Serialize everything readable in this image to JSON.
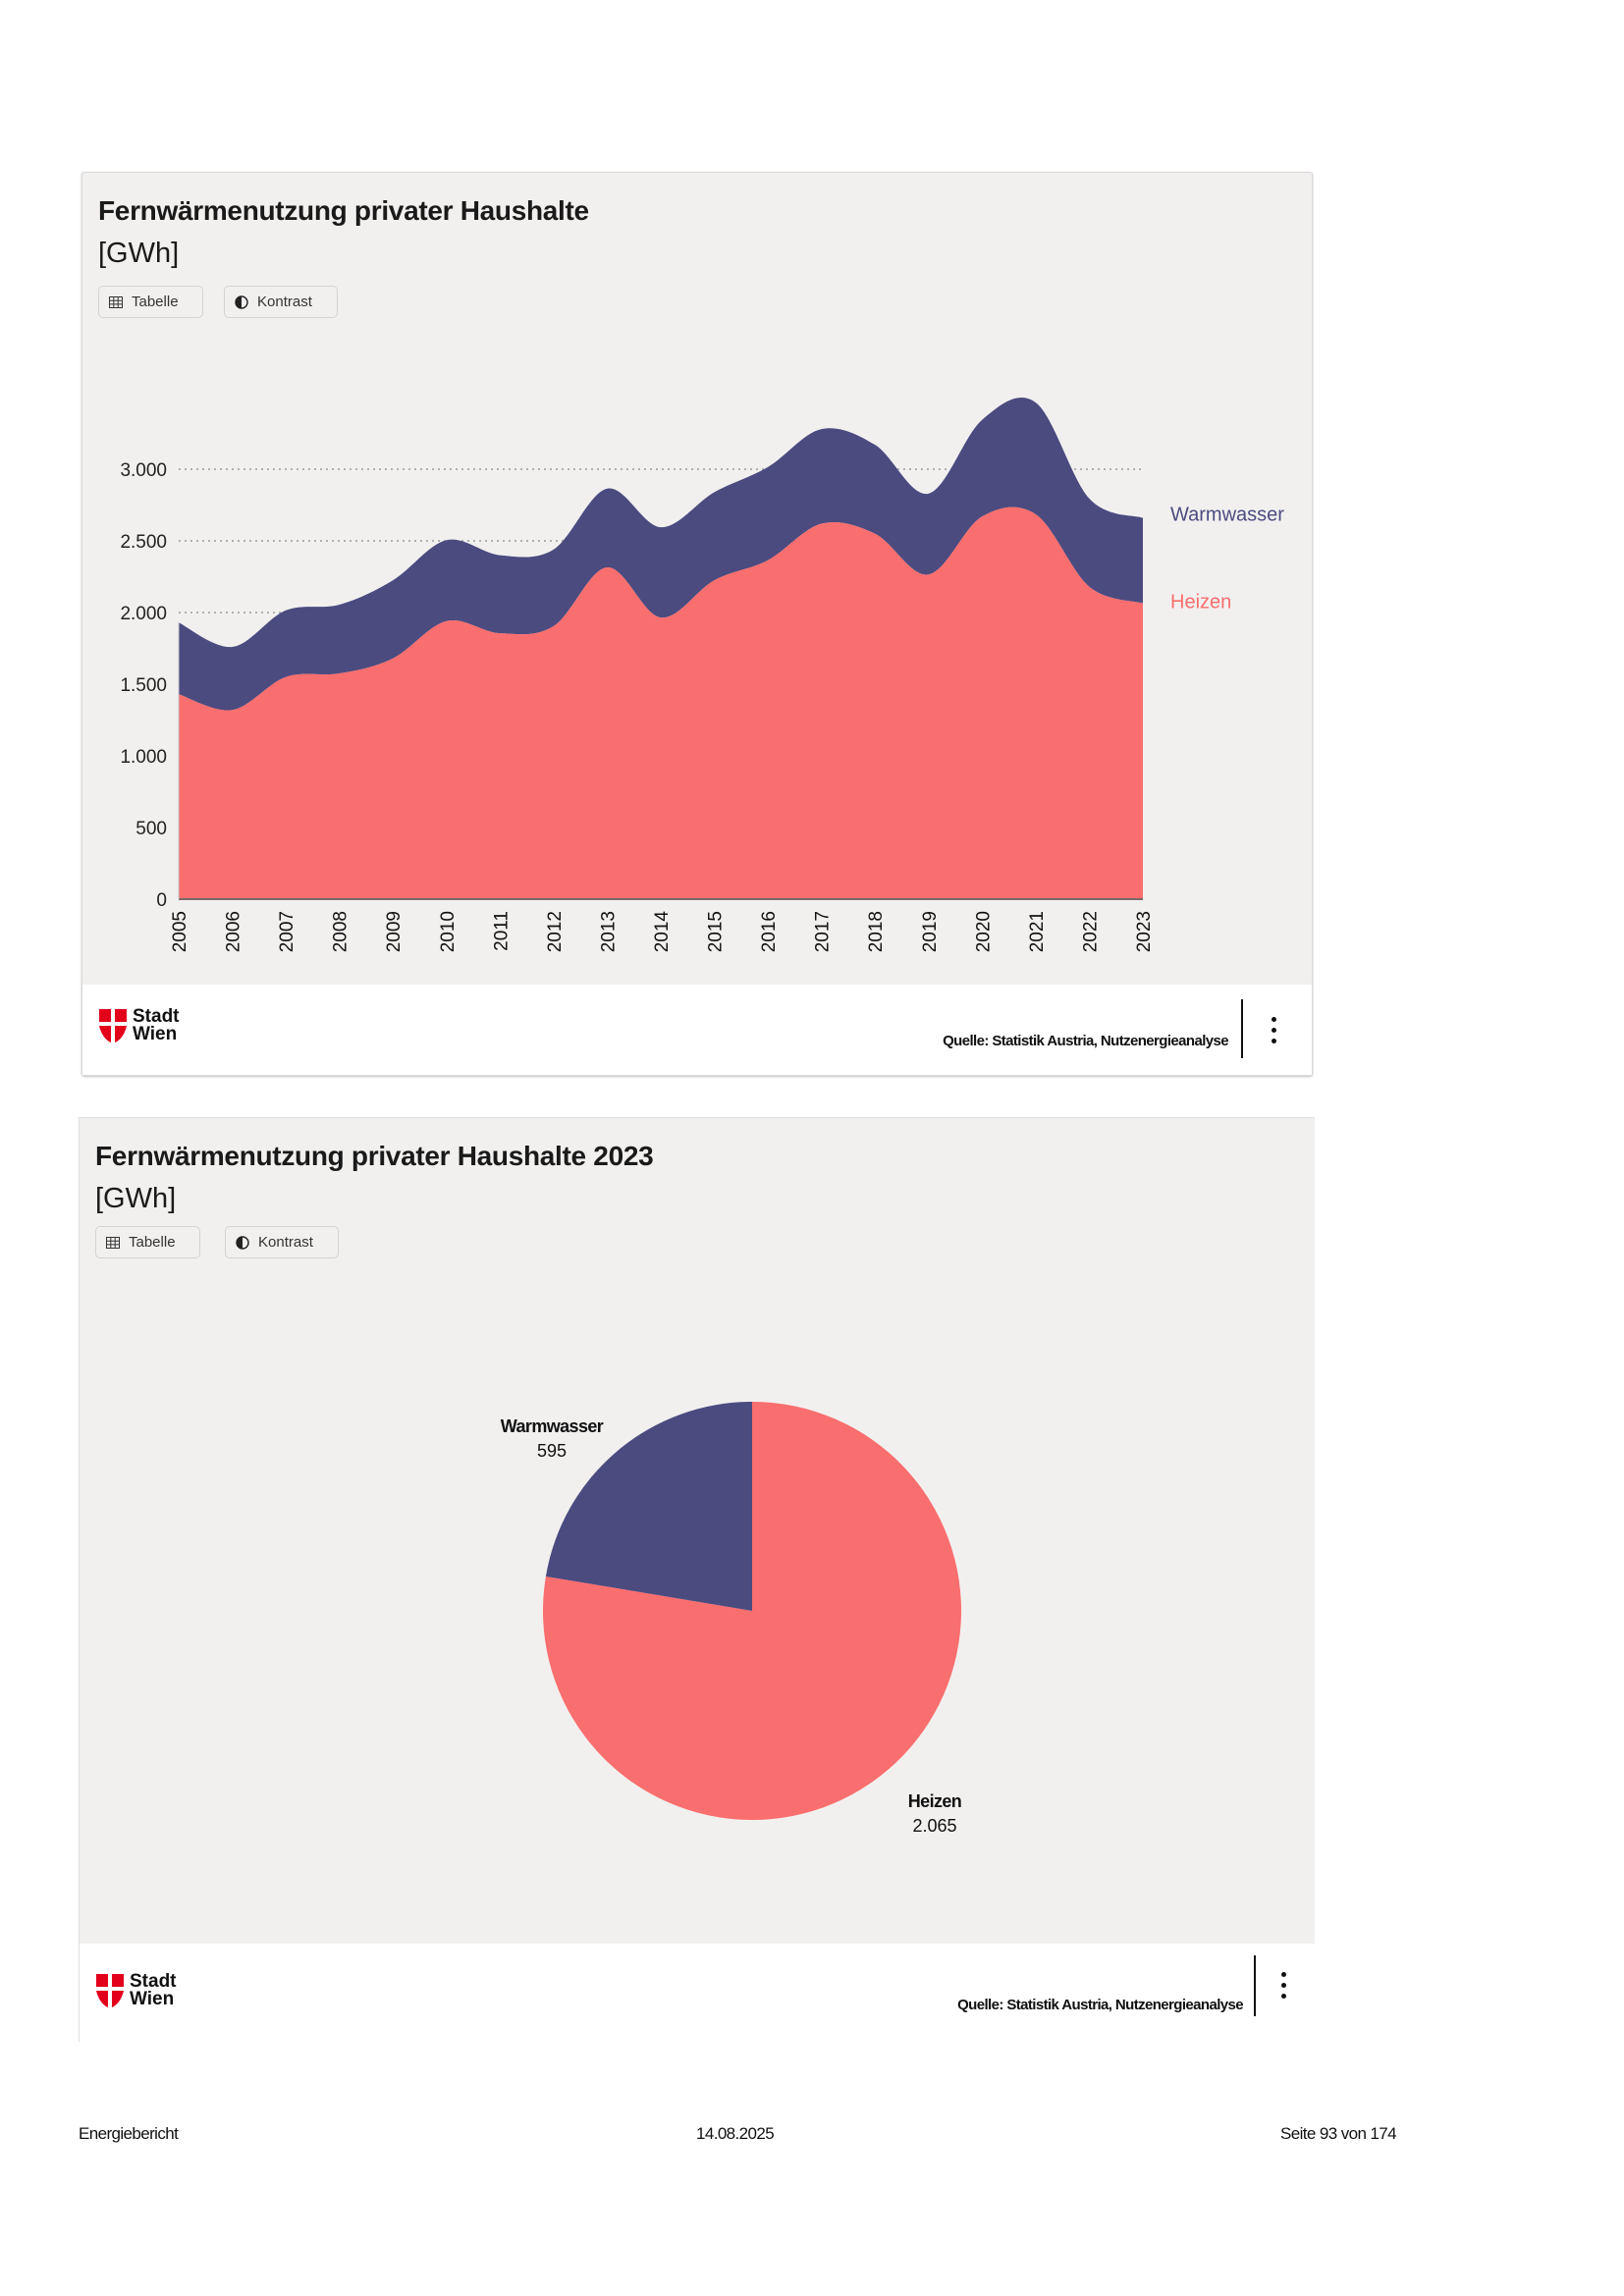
{
  "page": {
    "footer_left": "Energiebericht",
    "footer_center": "14.08.2025",
    "footer_right": "Seite 93 von 174"
  },
  "colors": {
    "heizen": "#f96e6e",
    "warmwasser": "#4b4b80",
    "card_bg": "#f2f0ef",
    "logo_red": "#e2001a"
  },
  "cards": [
    {
      "title": "Fernwärmenutzung privater Haushalte",
      "unit": "[GWh]",
      "buttons": {
        "table": "Tabelle",
        "contrast": "Kontrast",
        "table_icon": "table-icon",
        "contrast_icon": "contrast-icon"
      },
      "logo": {
        "line1": "Stadt",
        "line2": "Wien"
      },
      "source": "Quelle: Statistik Austria, Nutzenergieanalyse",
      "menu_icon": "more-vertical-icon"
    },
    {
      "title": "Fernwärmenutzung privater Haushalte 2023",
      "unit": "[GWh]",
      "buttons": {
        "table": "Tabelle",
        "contrast": "Kontrast",
        "table_icon": "table-icon",
        "contrast_icon": "contrast-icon"
      },
      "logo": {
        "line1": "Stadt",
        "line2": "Wien"
      },
      "source": "Quelle: Statistik Austria, Nutzenergieanalyse",
      "menu_icon": "more-vertical-icon"
    }
  ],
  "chart_data": [
    {
      "type": "area",
      "stacked": true,
      "title": "Fernwärmenutzung privater Haushalte",
      "ylabel": "[GWh]",
      "xlabel": "",
      "x": [
        "2005",
        "2006",
        "2007",
        "2008",
        "2009",
        "2010",
        "2011",
        "2012",
        "2013",
        "2014",
        "2015",
        "2016",
        "2017",
        "2018",
        "2019",
        "2020",
        "2021",
        "2022",
        "2023"
      ],
      "series": [
        {
          "name": "Heizen",
          "color": "#f96e6e",
          "values": [
            1430,
            1320,
            1550,
            1575,
            1680,
            1940,
            1855,
            1905,
            2315,
            1965,
            2225,
            2365,
            2620,
            2550,
            2265,
            2670,
            2685,
            2180,
            2065
          ]
        },
        {
          "name": "Warmwasser",
          "color": "#4b4b80",
          "values": [
            500,
            440,
            465,
            480,
            545,
            565,
            545,
            535,
            550,
            630,
            615,
            650,
            660,
            620,
            565,
            675,
            780,
            615,
            595
          ]
        }
      ],
      "ylim": [
        0,
        3500
      ],
      "yticks": [
        0,
        500,
        1000,
        1500,
        2000,
        2500,
        3000
      ],
      "ytick_labels": [
        "0",
        "500",
        "1.000",
        "1.500",
        "2.000",
        "2.500",
        "3.000"
      ],
      "grid": "horizontal dotted (2.000, 2.500, 3.000)",
      "legend": "right (inline labels)",
      "legend_labels": [
        "Warmwasser",
        "Heizen"
      ]
    },
    {
      "type": "pie",
      "title": "Fernwärmenutzung privater Haushalte 2023",
      "unit": "[GWh]",
      "slices": [
        {
          "label": "Heizen",
          "value": 2065,
          "value_label": "2.065",
          "color": "#f96e6e"
        },
        {
          "label": "Warmwasser",
          "value": 595,
          "value_label": "595",
          "color": "#4b4b80"
        }
      ]
    }
  ]
}
